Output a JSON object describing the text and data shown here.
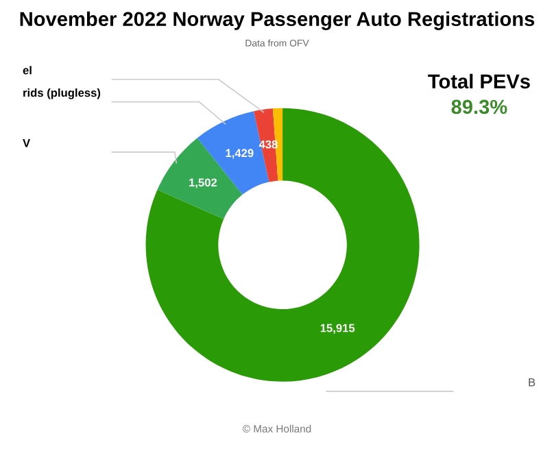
{
  "chart_data": {
    "type": "donut",
    "title": "November 2022 Norway Passenger Auto Registrations",
    "subtitle": "Data from OFV",
    "categories": [
      "B",
      "V",
      "rids (plugless)",
      "el",
      null
    ],
    "values": [
      15915,
      1502,
      1429,
      438,
      220
    ],
    "colors": [
      "#2a9a06",
      "#34a853",
      "#4285f4",
      "#ea4335",
      "#fbbc04"
    ],
    "value_labels": [
      "15,915",
      "1,502",
      "1,429",
      "438",
      null
    ],
    "annotations": [
      "Total PEVs",
      "89.3%",
      "© Max Holland"
    ],
    "legend": false
  }
}
